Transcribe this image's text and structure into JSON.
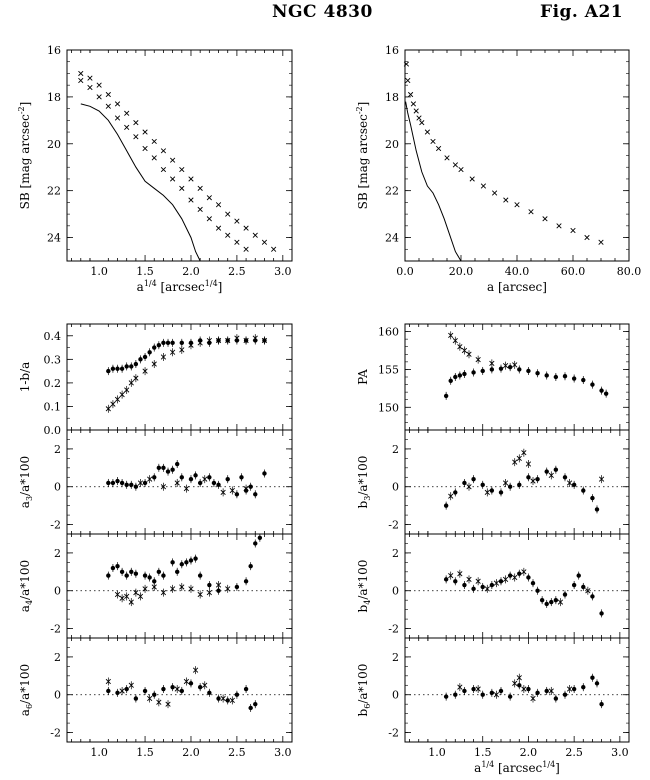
{
  "header": {
    "galaxy": "NGC 4830",
    "figure": "Fig. A21"
  },
  "chart_data": [
    {
      "id": "sb_quarter",
      "type": "scatter",
      "xlabel": "a^{1/4} [arcsec^{1/4}]",
      "ylabel": "SB [mag arcsec^{-2}]",
      "xlim": [
        0.65,
        3.1
      ],
      "ylim": [
        25,
        16
      ],
      "y_inverted": true,
      "xticks": [
        "1.0",
        "1.5",
        "2.0",
        "2.5",
        "3.0"
      ],
      "yticks": [
        "16",
        "18",
        "20",
        "22",
        "24"
      ],
      "series": [
        {
          "marker": "x",
          "x": [
            0.8,
            0.9,
            1.0,
            1.1,
            1.2,
            1.3,
            1.4,
            1.5,
            1.6,
            1.7,
            1.8,
            1.9,
            2.0,
            2.1,
            2.2,
            2.3,
            2.4,
            2.5,
            2.6,
            2.7,
            2.8,
            2.9
          ],
          "y": [
            17.0,
            17.2,
            17.5,
            17.9,
            18.3,
            18.7,
            19.1,
            19.5,
            19.9,
            20.3,
            20.7,
            21.1,
            21.5,
            21.9,
            22.3,
            22.6,
            23.0,
            23.3,
            23.6,
            23.9,
            24.2,
            24.5
          ]
        },
        {
          "marker": "x",
          "x": [
            0.8,
            0.9,
            1.0,
            1.1,
            1.2,
            1.3,
            1.4,
            1.5,
            1.6,
            1.7,
            1.8,
            1.9,
            2.0,
            2.1,
            2.2,
            2.3,
            2.4,
            2.5,
            2.6
          ],
          "y": [
            17.3,
            17.6,
            18.0,
            18.4,
            18.9,
            19.3,
            19.7,
            20.2,
            20.6,
            21.1,
            21.5,
            21.9,
            22.4,
            22.8,
            23.2,
            23.6,
            23.9,
            24.2,
            24.5
          ]
        },
        {
          "marker": "line",
          "x": [
            0.8,
            0.9,
            1.0,
            1.1,
            1.2,
            1.3,
            1.4,
            1.5,
            1.6,
            1.7,
            1.8,
            1.9,
            2.0,
            2.05,
            2.1
          ],
          "y": [
            18.3,
            18.4,
            18.6,
            19.0,
            19.6,
            20.3,
            21.0,
            21.6,
            21.9,
            22.2,
            22.6,
            23.2,
            24.0,
            24.6,
            25.0
          ]
        }
      ]
    },
    {
      "id": "sb_linear",
      "type": "scatter",
      "xlabel": "a [arcsec]",
      "ylabel": "SB [mag arcsec^{-2}]",
      "xlim": [
        0,
        80
      ],
      "ylim": [
        25,
        16
      ],
      "y_inverted": true,
      "xticks": [
        "0.0",
        "20.0",
        "40.0",
        "60.0",
        "80.0"
      ],
      "yticks": [
        "16",
        "18",
        "20",
        "22",
        "24"
      ],
      "series": [
        {
          "marker": "x",
          "x": [
            0.5,
            1,
            2,
            3,
            4,
            5,
            6,
            8,
            10,
            12,
            15,
            18,
            20,
            24,
            28,
            32,
            36,
            40,
            45,
            50,
            55,
            60,
            65,
            70
          ],
          "y": [
            16.6,
            17.3,
            17.9,
            18.3,
            18.6,
            18.9,
            19.1,
            19.5,
            19.9,
            20.2,
            20.6,
            20.9,
            21.1,
            21.5,
            21.8,
            22.1,
            22.4,
            22.6,
            22.9,
            23.2,
            23.5,
            23.7,
            24.0,
            24.2
          ]
        },
        {
          "marker": "line",
          "x": [
            0.2,
            1,
            2,
            4,
            6,
            8,
            10,
            12,
            14,
            16,
            18,
            20
          ],
          "y": [
            18.2,
            18.7,
            19.2,
            20.3,
            21.2,
            21.8,
            22.1,
            22.6,
            23.2,
            23.9,
            24.6,
            25.0
          ]
        }
      ]
    },
    {
      "id": "ellipticity",
      "type": "scatter",
      "ylabel": "1-b/a",
      "xlim": [
        0.65,
        3.1
      ],
      "ylim": [
        0.0,
        0.45
      ],
      "yticks": [
        "0.0",
        "0.1",
        "0.2",
        "0.3",
        "0.4"
      ],
      "series": [
        {
          "marker": "dot",
          "x": [
            1.1,
            1.15,
            1.2,
            1.25,
            1.3,
            1.35,
            1.4,
            1.45,
            1.5,
            1.55,
            1.6,
            1.65,
            1.7,
            1.75,
            1.8,
            1.9,
            2.0,
            2.1,
            2.2,
            2.3,
            2.4,
            2.5,
            2.6,
            2.7,
            2.8
          ],
          "y": [
            0.25,
            0.26,
            0.26,
            0.26,
            0.27,
            0.27,
            0.28,
            0.3,
            0.31,
            0.33,
            0.35,
            0.36,
            0.37,
            0.37,
            0.37,
            0.37,
            0.37,
            0.38,
            0.37,
            0.38,
            0.38,
            0.38,
            0.38,
            0.38,
            0.38
          ]
        },
        {
          "marker": "x",
          "x": [
            1.1,
            1.15,
            1.2,
            1.25,
            1.3,
            1.35,
            1.4,
            1.5,
            1.6,
            1.7,
            1.8,
            1.9,
            2.0,
            2.1,
            2.2,
            2.3,
            2.4,
            2.5,
            2.6,
            2.7,
            2.8
          ],
          "y": [
            0.09,
            0.11,
            0.13,
            0.15,
            0.17,
            0.2,
            0.22,
            0.25,
            0.28,
            0.31,
            0.33,
            0.34,
            0.36,
            0.37,
            0.38,
            0.38,
            0.38,
            0.39,
            0.38,
            0.39,
            0.38
          ]
        }
      ]
    },
    {
      "id": "pa",
      "type": "scatter",
      "ylabel": "PA",
      "xlim": [
        0.65,
        3.1
      ],
      "ylim": [
        147,
        161
      ],
      "yticks": [
        "150",
        "155",
        "160"
      ],
      "series": [
        {
          "marker": "dot",
          "x": [
            1.1,
            1.15,
            1.2,
            1.25,
            1.3,
            1.4,
            1.5,
            1.6,
            1.7,
            1.8,
            1.9,
            2.0,
            2.1,
            2.2,
            2.3,
            2.4,
            2.5,
            2.6,
            2.7,
            2.8,
            2.85
          ],
          "y": [
            151.5,
            153.5,
            154.0,
            154.2,
            154.4,
            154.6,
            154.8,
            155.0,
            155.1,
            155.3,
            155.0,
            154.8,
            154.5,
            154.2,
            154.0,
            154.1,
            153.8,
            153.6,
            153.0,
            152.2,
            151.8
          ]
        },
        {
          "marker": "x",
          "x": [
            1.15,
            1.2,
            1.25,
            1.3,
            1.35,
            1.45,
            1.6,
            1.75,
            1.85
          ],
          "y": [
            159.5,
            158.8,
            158.0,
            157.5,
            157.0,
            156.3,
            155.8,
            155.5,
            155.6
          ]
        }
      ]
    },
    {
      "id": "a3",
      "type": "scatter",
      "ylabel": "a_3/a*100",
      "xlim": [
        0.65,
        3.1
      ],
      "ylim": [
        -2.5,
        3.0
      ],
      "yticks": [
        "-2",
        "0",
        "2"
      ],
      "zero_line": true,
      "series": [
        {
          "marker": "dot",
          "x": [
            1.1,
            1.15,
            1.2,
            1.25,
            1.3,
            1.35,
            1.4,
            1.5,
            1.6,
            1.65,
            1.7,
            1.75,
            1.8,
            1.85,
            1.9,
            2.0,
            2.05,
            2.1,
            2.2,
            2.25,
            2.3,
            2.4,
            2.5,
            2.55,
            2.6,
            2.65,
            2.7,
            2.8
          ],
          "y": [
            0.2,
            0.2,
            0.3,
            0.2,
            0.1,
            0.1,
            0.0,
            0.2,
            0.5,
            1.0,
            1.0,
            0.8,
            0.9,
            1.2,
            0.5,
            0.4,
            0.6,
            0.2,
            0.5,
            0.2,
            0.1,
            0.4,
            -0.4,
            0.5,
            -0.2,
            0.0,
            -0.4,
            0.7
          ]
        },
        {
          "marker": "x",
          "x": [
            1.45,
            1.55,
            1.7,
            1.85,
            1.95,
            2.15,
            2.35,
            2.45,
            2.6
          ],
          "y": [
            0.2,
            0.4,
            0.0,
            0.2,
            -0.1,
            0.4,
            -0.3,
            -0.2,
            -0.1
          ]
        }
      ]
    },
    {
      "id": "b3",
      "type": "scatter",
      "ylabel": "b_3/a*100",
      "xlim": [
        0.65,
        3.1
      ],
      "ylim": [
        -2.5,
        3.0
      ],
      "yticks": [
        "-2",
        "0",
        "2"
      ],
      "zero_line": true,
      "series": [
        {
          "marker": "dot",
          "x": [
            1.1,
            1.2,
            1.3,
            1.4,
            1.5,
            1.6,
            1.7,
            1.8,
            1.9,
            2.0,
            2.1,
            2.2,
            2.3,
            2.4,
            2.5,
            2.6,
            2.7,
            2.75
          ],
          "y": [
            -1.0,
            -0.3,
            0.2,
            0.4,
            0.1,
            -0.2,
            -0.3,
            0.0,
            0.1,
            0.5,
            0.4,
            0.8,
            0.9,
            0.5,
            0.1,
            -0.2,
            -0.6,
            -1.2
          ]
        },
        {
          "marker": "x",
          "x": [
            1.15,
            1.35,
            1.55,
            1.75,
            1.85,
            1.9,
            1.95,
            2.0,
            2.05,
            2.25,
            2.45,
            2.8
          ],
          "y": [
            -0.5,
            0.0,
            -0.3,
            0.2,
            1.3,
            1.5,
            1.8,
            1.2,
            0.3,
            0.6,
            0.2,
            0.4
          ]
        }
      ]
    },
    {
      "id": "a4",
      "type": "scatter",
      "ylabel": "a_4/a*100",
      "xlim": [
        0.65,
        3.1
      ],
      "ylim": [
        -2.5,
        3.0
      ],
      "yticks": [
        "-2",
        "0",
        "2"
      ],
      "zero_line": true,
      "series": [
        {
          "marker": "dot",
          "x": [
            1.1,
            1.15,
            1.2,
            1.25,
            1.3,
            1.35,
            1.4,
            1.5,
            1.55,
            1.6,
            1.65,
            1.7,
            1.8,
            1.85,
            1.9,
            1.95,
            2.0,
            2.05,
            2.1,
            2.2,
            2.3,
            2.5,
            2.6,
            2.65,
            2.7,
            2.75
          ],
          "y": [
            0.8,
            1.2,
            1.3,
            1.0,
            0.8,
            1.0,
            0.9,
            0.8,
            0.7,
            0.5,
            1.0,
            0.8,
            1.5,
            1.0,
            1.4,
            1.5,
            1.6,
            1.7,
            0.8,
            0.3,
            0.0,
            0.2,
            0.5,
            1.3,
            2.5,
            2.8
          ]
        },
        {
          "marker": "x",
          "x": [
            1.2,
            1.25,
            1.3,
            1.35,
            1.4,
            1.45,
            1.5,
            1.6,
            1.7,
            1.8,
            1.9,
            2.0,
            2.1,
            2.2,
            2.3,
            2.4
          ],
          "y": [
            -0.2,
            -0.4,
            -0.3,
            -0.6,
            -0.1,
            -0.3,
            0.1,
            0.2,
            -0.1,
            0.1,
            0.2,
            0.1,
            -0.2,
            -0.1,
            0.3,
            0.1
          ]
        }
      ]
    },
    {
      "id": "b4",
      "type": "scatter",
      "ylabel": "b_4/a*100",
      "xlim": [
        0.65,
        3.1
      ],
      "ylim": [
        -2.5,
        3.0
      ],
      "yticks": [
        "-2",
        "0",
        "2"
      ],
      "zero_line": true,
      "series": [
        {
          "marker": "dot",
          "x": [
            1.1,
            1.2,
            1.3,
            1.4,
            1.5,
            1.6,
            1.7,
            1.8,
            1.9,
            2.0,
            2.05,
            2.1,
            2.15,
            2.2,
            2.25,
            2.3,
            2.4,
            2.5,
            2.55,
            2.6,
            2.7,
            2.8
          ],
          "y": [
            0.6,
            0.5,
            0.3,
            0.1,
            0.2,
            0.3,
            0.5,
            0.8,
            0.9,
            0.7,
            0.4,
            0.0,
            -0.5,
            -0.7,
            -0.6,
            -0.5,
            -0.2,
            0.3,
            0.8,
            0.2,
            -0.3,
            -1.2
          ]
        },
        {
          "marker": "x",
          "x": [
            1.15,
            1.25,
            1.35,
            1.45,
            1.55,
            1.65,
            1.75,
            1.85,
            1.95,
            2.35,
            2.65
          ],
          "y": [
            0.8,
            0.9,
            0.6,
            0.5,
            0.1,
            0.4,
            0.6,
            0.7,
            1.0,
            -0.6,
            0.0
          ]
        }
      ]
    },
    {
      "id": "a6",
      "type": "scatter",
      "ylabel": "a_6/a*100",
      "xlim": [
        0.65,
        3.1
      ],
      "ylim": [
        -2.5,
        3.0
      ],
      "yticks": [
        "-2",
        "0",
        "2"
      ],
      "zero_line": true,
      "series": [
        {
          "marker": "dot",
          "x": [
            1.1,
            1.2,
            1.3,
            1.4,
            1.5,
            1.6,
            1.7,
            1.8,
            1.9,
            2.0,
            2.1,
            2.2,
            2.3,
            2.4,
            2.5,
            2.6,
            2.65,
            2.7
          ],
          "y": [
            0.2,
            0.1,
            0.3,
            -0.2,
            0.2,
            0.0,
            0.3,
            0.4,
            0.2,
            0.6,
            0.4,
            0.1,
            -0.2,
            -0.3,
            0.0,
            0.3,
            -0.7,
            -0.5
          ]
        },
        {
          "marker": "x",
          "x": [
            1.1,
            1.25,
            1.35,
            1.55,
            1.65,
            1.75,
            1.85,
            1.95,
            2.05,
            2.15,
            2.35,
            2.45
          ],
          "y": [
            0.7,
            0.2,
            0.5,
            -0.2,
            -0.4,
            -0.5,
            0.3,
            0.7,
            1.3,
            0.5,
            -0.2,
            -0.3
          ]
        }
      ]
    },
    {
      "id": "b6",
      "type": "scatter",
      "ylabel": "b_6/a*100",
      "xlabel": "a^{1/4} [arcsec^{1/4}]",
      "xlim": [
        0.65,
        3.1
      ],
      "ylim": [
        -2.5,
        3.0
      ],
      "yticks": [
        "-2",
        "0",
        "2"
      ],
      "zero_line": true,
      "series": [
        {
          "marker": "dot",
          "x": [
            1.1,
            1.2,
            1.3,
            1.4,
            1.5,
            1.6,
            1.7,
            1.8,
            1.9,
            2.0,
            2.1,
            2.2,
            2.3,
            2.4,
            2.5,
            2.6,
            2.7,
            2.75,
            2.8
          ],
          "y": [
            -0.1,
            0.0,
            0.2,
            0.3,
            0.0,
            0.1,
            0.2,
            -0.1,
            0.5,
            0.3,
            0.1,
            0.2,
            -0.2,
            0.0,
            0.3,
            0.4,
            0.9,
            0.6,
            -0.5
          ]
        },
        {
          "marker": "x",
          "x": [
            1.25,
            1.45,
            1.65,
            1.85,
            1.9,
            1.95,
            2.05,
            2.25,
            2.45
          ],
          "y": [
            0.4,
            0.3,
            0.0,
            0.6,
            0.9,
            0.3,
            -0.2,
            0.2,
            0.3
          ]
        }
      ]
    }
  ]
}
